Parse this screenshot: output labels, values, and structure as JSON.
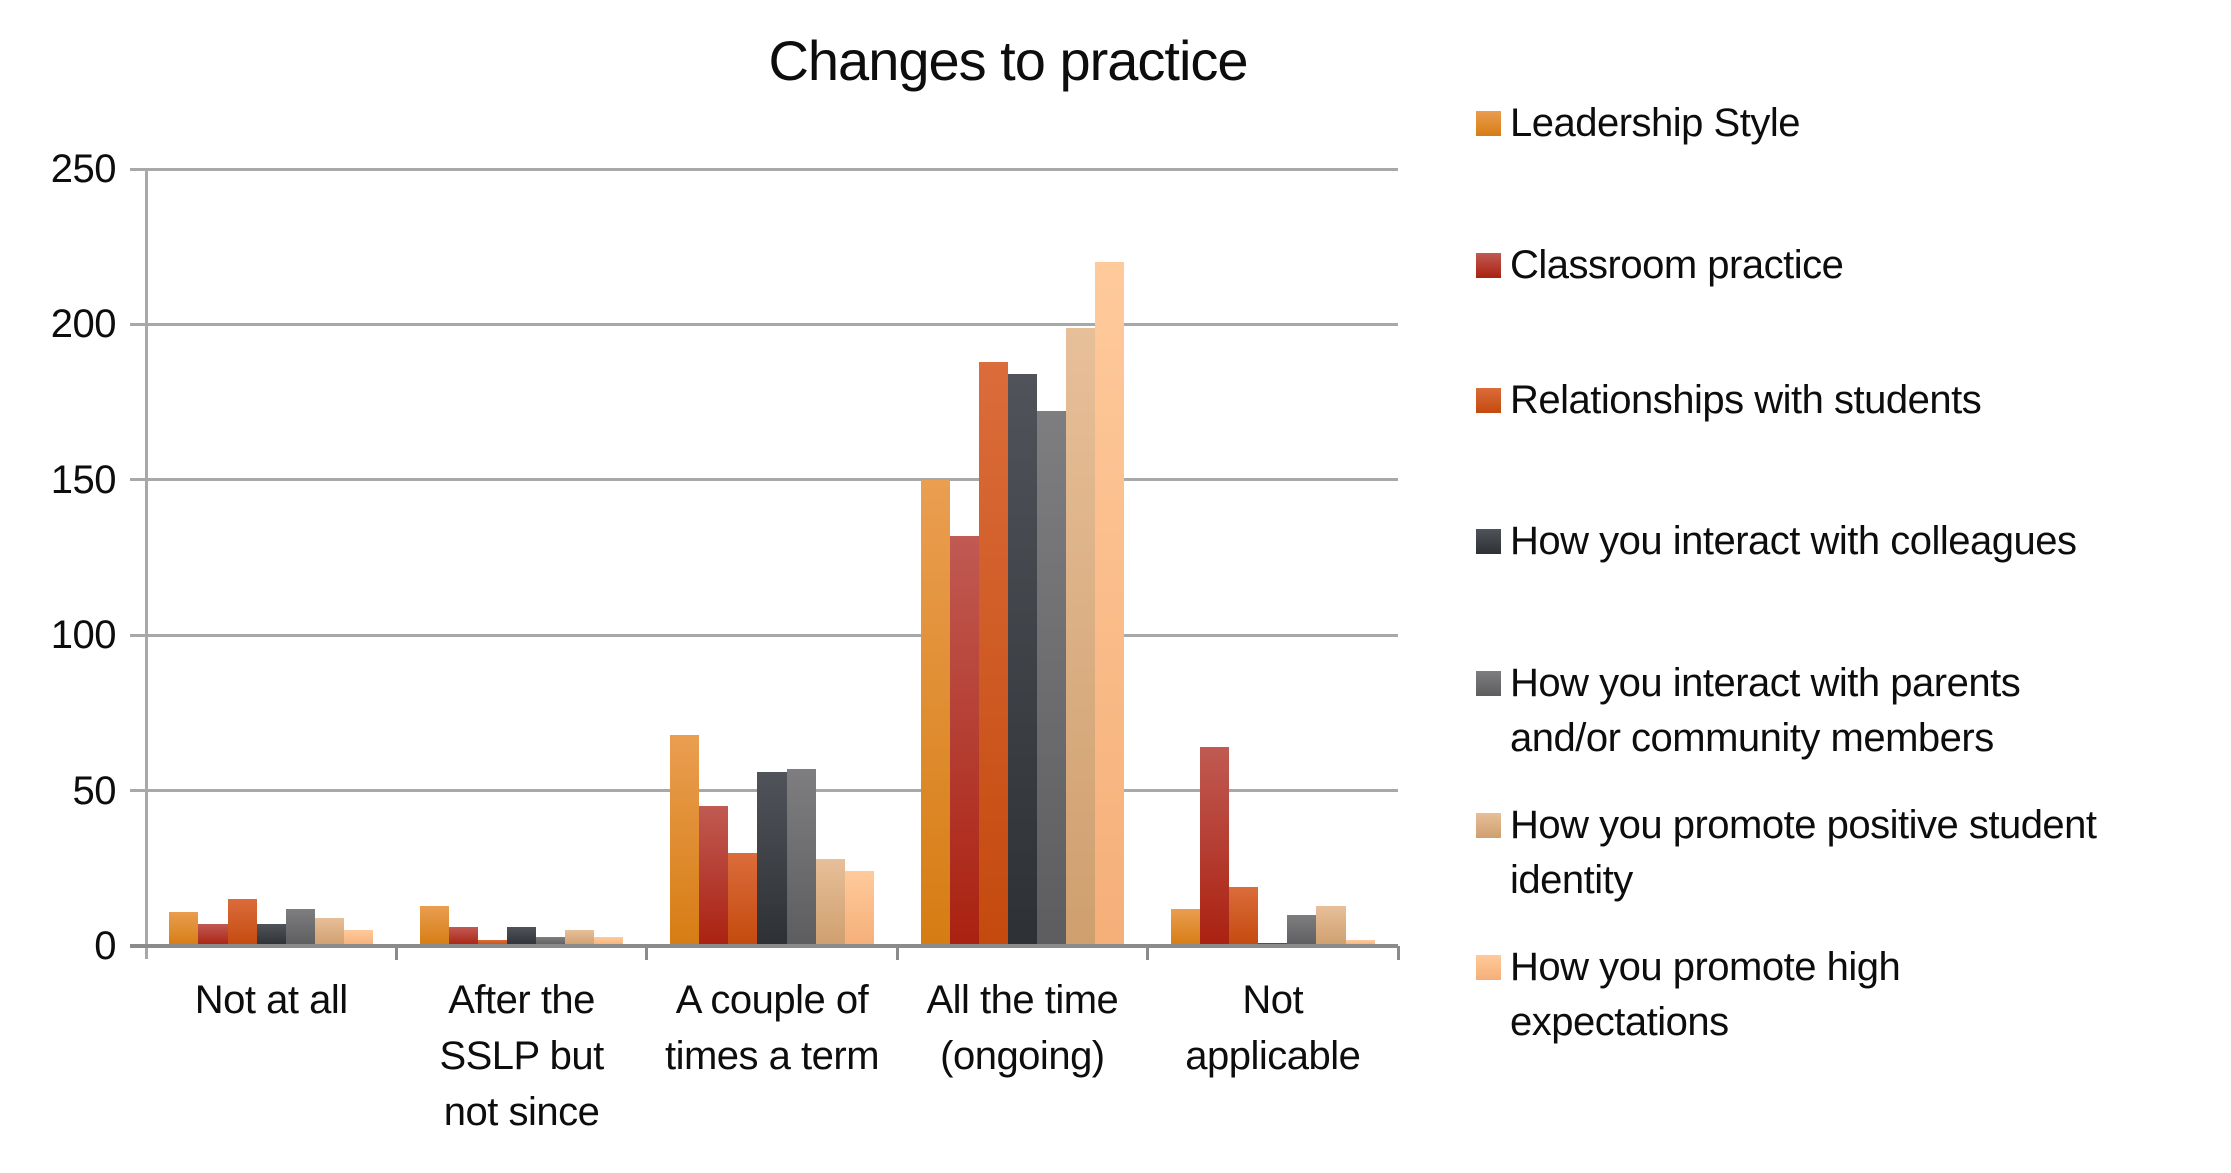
{
  "chart_data": {
    "type": "bar",
    "title": "Changes to practice",
    "xlabel": "",
    "ylabel": "",
    "ylim": [
      0,
      250
    ],
    "ytick_step": 50,
    "yticks": [
      "0",
      "50",
      "100",
      "150",
      "200",
      "250"
    ],
    "grid": true,
    "legend_position": "right",
    "categories": [
      "Not at all",
      "After the SSLP but not since",
      "A couple of times a term",
      "All the time (ongoing)",
      "Not applicable"
    ],
    "categories_lines": [
      [
        "Not at all"
      ],
      [
        "After the",
        "SSLP but",
        "not since"
      ],
      [
        "A couple of",
        "times a term"
      ],
      [
        "All the time",
        "(ongoing)"
      ],
      [
        "Not",
        "applicable"
      ]
    ],
    "series": [
      {
        "name": "Leadership Style",
        "legend_lines": [
          "Leadership Style"
        ],
        "values": [
          11,
          13,
          68,
          150,
          12
        ],
        "color_top": "#EA9E50",
        "color_bottom": "#D67C13"
      },
      {
        "name": "Classroom practice",
        "legend_lines": [
          "Classroom practice"
        ],
        "values": [
          7,
          6,
          45,
          132,
          64
        ],
        "color_top": "#C05A53",
        "color_bottom": "#AA2110"
      },
      {
        "name": "Relationships with students",
        "legend_lines": [
          "Relationships with students"
        ],
        "values": [
          15,
          2,
          30,
          188,
          19
        ],
        "color_top": "#DB6C3B",
        "color_bottom": "#C44A0E"
      },
      {
        "name": "How you interact with colleagues",
        "legend_lines": [
          "How you interact with colleagues"
        ],
        "values": [
          7,
          6,
          56,
          184,
          1
        ],
        "color_top": "#50545A",
        "color_bottom": "#2D3135"
      },
      {
        "name": "How you interact with parents and/or community members",
        "legend_lines": [
          "How you interact with parents",
          "and/or community members"
        ],
        "values": [
          12,
          3,
          57,
          172,
          10
        ],
        "color_top": "#7E7D80",
        "color_bottom": "#5D5D5F"
      },
      {
        "name": "How you promote positive student identity",
        "legend_lines": [
          "How you promote positive student",
          "identity"
        ],
        "values": [
          9,
          5,
          28,
          199,
          13
        ],
        "color_top": "#E7BF99",
        "color_bottom": "#CF9F6E"
      },
      {
        "name": "How you promote high expectations",
        "legend_lines": [
          "How you promote high",
          "expectations"
        ],
        "values": [
          5,
          3,
          24,
          220,
          2
        ],
        "color_top": "#FFCA9B",
        "color_bottom": "#F5AF79"
      }
    ]
  }
}
